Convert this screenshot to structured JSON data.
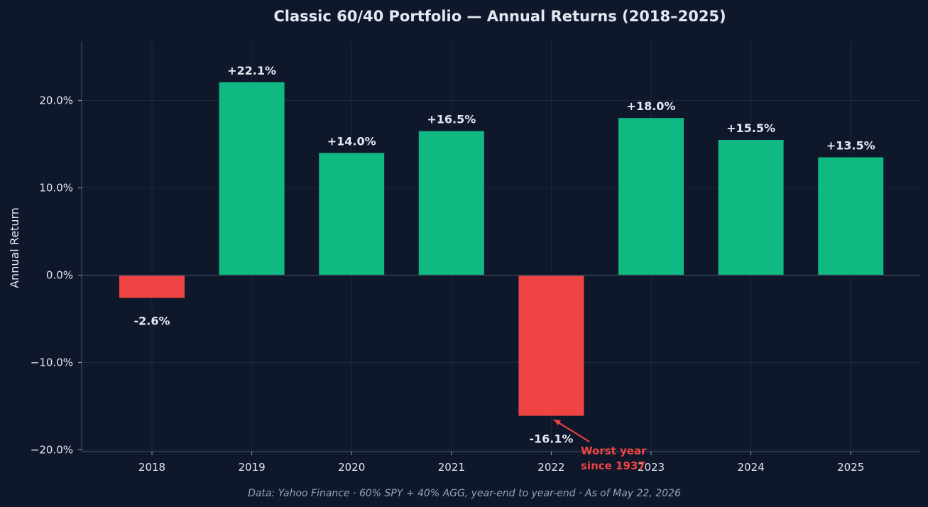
{
  "chart_data": {
    "type": "bar",
    "title": "Classic 60/40 Portfolio — Annual Returns (2018–2025)",
    "xlabel": "",
    "ylabel": "Annual Return",
    "categories": [
      "2018",
      "2019",
      "2020",
      "2021",
      "2022",
      "2023",
      "2024",
      "2025"
    ],
    "values": [
      -2.6,
      22.1,
      14.0,
      16.5,
      -16.1,
      18.0,
      15.5,
      13.5
    ],
    "data_labels": [
      "-2.6%",
      "+22.1%",
      "+14.0%",
      "+16.5%",
      "-16.1%",
      "+18.0%",
      "+15.5%",
      "+13.5%"
    ],
    "ylim": [
      -20.2,
      26.8
    ],
    "yticks": [
      -20,
      -10,
      0,
      10,
      20
    ],
    "ytick_labels": [
      "−20.0%",
      "−10.0%",
      "0.0%",
      "10.0%",
      "20.0%"
    ],
    "grid": true,
    "colors": {
      "positive": "#10b981",
      "negative": "#ef4444",
      "background": "#0f172a"
    },
    "annotation": {
      "text_line1": "Worst year",
      "text_line2": "since 1937",
      "category": "2022",
      "value": -16.1
    },
    "source_note": "Data: Yahoo Finance · 60% SPY + 40% AGG, year-end to year-end · As of May 22, 2026"
  }
}
